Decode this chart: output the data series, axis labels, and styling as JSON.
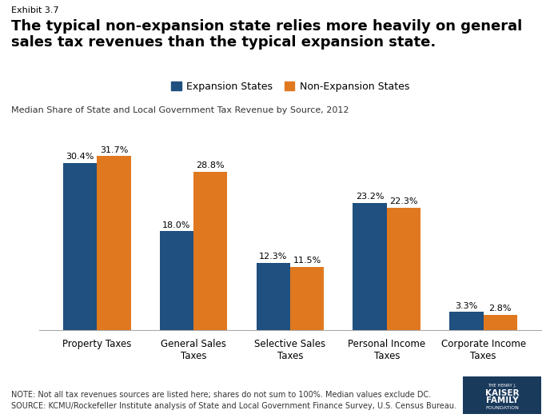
{
  "exhibit": "Exhibit 3.7",
  "title": "The typical non-expansion state relies more heavily on general\nsales tax revenues than the typical expansion state.",
  "subtitle": "Median Share of State and Local Government Tax Revenue by Source, 2012",
  "categories": [
    "Property Taxes",
    "General Sales\nTaxes",
    "Selective Sales\nTaxes",
    "Personal Income\nTaxes",
    "Corporate Income\nTaxes"
  ],
  "expansion_values": [
    30.4,
    18.0,
    12.3,
    23.2,
    3.3
  ],
  "nonexpansion_values": [
    31.7,
    28.8,
    11.5,
    22.3,
    2.8
  ],
  "expansion_color": "#1f5080",
  "nonexpansion_color": "#e07820",
  "legend_labels": [
    "Expansion States",
    "Non-Expansion States"
  ],
  "note": "NOTE: Not all tax revenues sources are listed here; shares do not sum to 100%. Median values exclude DC.\nSOURCE: KCMU/Rockefeller Institute analysis of State and Local Government Finance Survey, U.S. Census Bureau.",
  "ylim": [
    0,
    35
  ],
  "bar_width": 0.35
}
